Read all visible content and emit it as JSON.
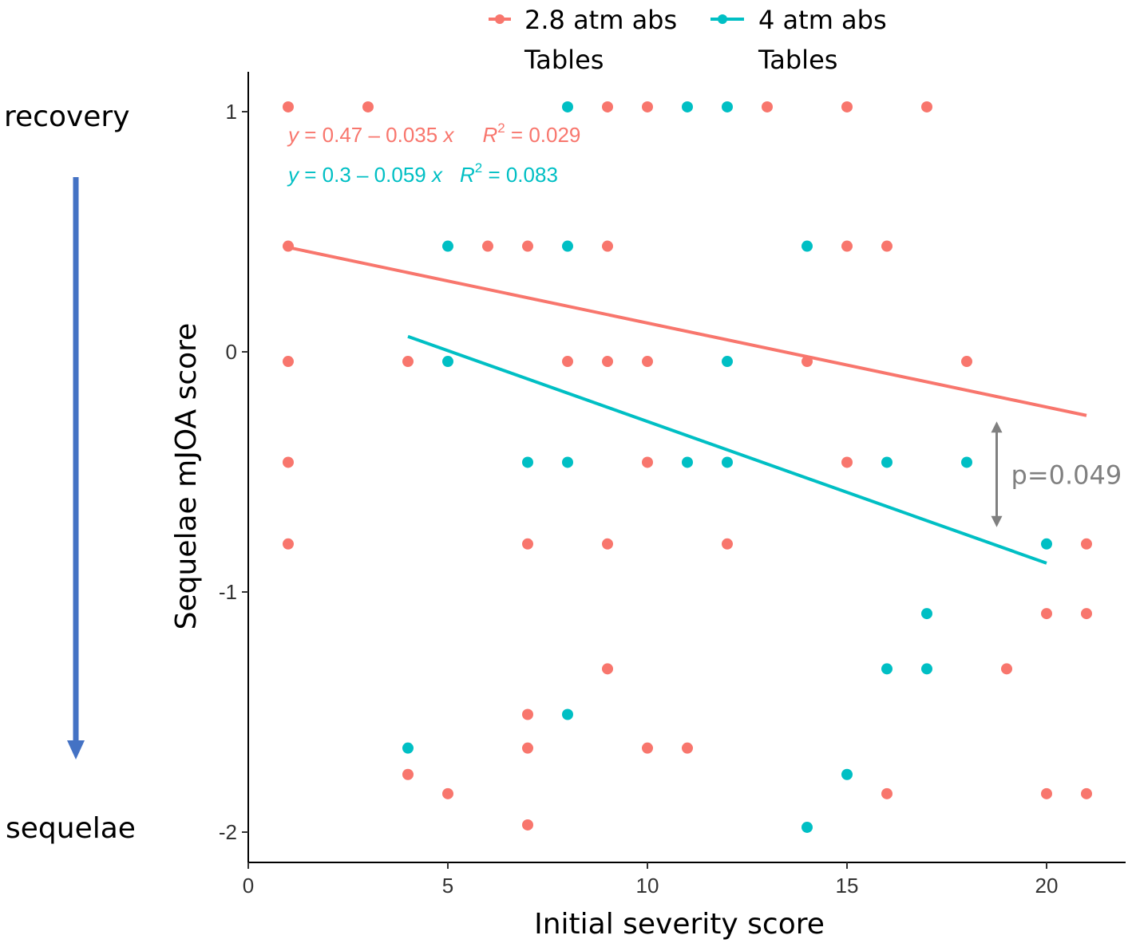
{
  "colors": {
    "series_a": "#F8766D",
    "series_b": "#00BFC4",
    "arrow": "#4472C4",
    "annotation": "#808080",
    "axis": "#000000"
  },
  "side_labels": {
    "top": "recovery",
    "bottom": "sequelae"
  },
  "chart_data": {
    "type": "scatter",
    "title": "",
    "xlabel": "Initial severity score",
    "ylabel": "Sequelae mJOA score",
    "xlim": [
      0,
      22
    ],
    "ylim": [
      -2.13,
      1.17
    ],
    "x_ticks": [
      0,
      5,
      10,
      15,
      20
    ],
    "y_ticks": [
      -2,
      -1,
      0,
      1
    ],
    "x_tick_labels": [
      "0",
      "5",
      "10",
      "15",
      "20"
    ],
    "y_tick_labels": [
      "-2",
      "-1",
      "0",
      "1"
    ],
    "grid": false,
    "legend_position": "top",
    "series": [
      {
        "name": "2.8 atm abs",
        "name_line2": "Tables",
        "color": "#F8766D",
        "points": [
          [
            1,
            1.02
          ],
          [
            3,
            1.02
          ],
          [
            9,
            1.02
          ],
          [
            10,
            1.02
          ],
          [
            13,
            1.02
          ],
          [
            15,
            1.02
          ],
          [
            17,
            1.02
          ],
          [
            1,
            0.44
          ],
          [
            6,
            0.44
          ],
          [
            7,
            0.44
          ],
          [
            9,
            0.44
          ],
          [
            15,
            0.44
          ],
          [
            16,
            0.44
          ],
          [
            1,
            -0.04
          ],
          [
            4,
            -0.04
          ],
          [
            8,
            -0.04
          ],
          [
            9,
            -0.04
          ],
          [
            10,
            -0.04
          ],
          [
            14,
            -0.04
          ],
          [
            18,
            -0.04
          ],
          [
            1,
            -0.46
          ],
          [
            10,
            -0.46
          ],
          [
            15,
            -0.46
          ],
          [
            1,
            -0.8
          ],
          [
            7,
            -0.8
          ],
          [
            9,
            -0.8
          ],
          [
            12,
            -0.8
          ],
          [
            21,
            -0.8
          ],
          [
            20,
            -1.09
          ],
          [
            21,
            -1.09
          ],
          [
            9,
            -1.32
          ],
          [
            19,
            -1.32
          ],
          [
            7,
            -1.51
          ],
          [
            7,
            -1.65
          ],
          [
            10,
            -1.65
          ],
          [
            11,
            -1.65
          ],
          [
            4,
            -1.76
          ],
          [
            5,
            -1.84
          ],
          [
            16,
            -1.84
          ],
          [
            20,
            -1.84
          ],
          [
            21,
            -1.84
          ],
          [
            7,
            -1.97
          ]
        ],
        "fit": {
          "intercept": 0.47,
          "slope": -0.035,
          "x_range": [
            1,
            21
          ]
        },
        "equation": {
          "lhs": "y",
          "rhs": " = 0.47 – 0.035 ",
          "var": "x",
          "r2_label": "R",
          "r2_sup": "2",
          "r2_value": " = 0.029"
        }
      },
      {
        "name": "4 atm abs",
        "name_line2": "Tables",
        "color": "#00BFC4",
        "points": [
          [
            8,
            1.02
          ],
          [
            11,
            1.02
          ],
          [
            12,
            1.02
          ],
          [
            5,
            0.44
          ],
          [
            8,
            0.44
          ],
          [
            14,
            0.44
          ],
          [
            5,
            -0.04
          ],
          [
            12,
            -0.04
          ],
          [
            7,
            -0.46
          ],
          [
            8,
            -0.46
          ],
          [
            11,
            -0.46
          ],
          [
            12,
            -0.46
          ],
          [
            16,
            -0.46
          ],
          [
            18,
            -0.46
          ],
          [
            20,
            -0.8
          ],
          [
            17,
            -1.09
          ],
          [
            16,
            -1.32
          ],
          [
            17,
            -1.32
          ],
          [
            8,
            -1.51
          ],
          [
            4,
            -1.65
          ],
          [
            15,
            -1.76
          ],
          [
            14,
            -1.98
          ]
        ],
        "fit": {
          "intercept": 0.3,
          "slope": -0.059,
          "x_range": [
            4,
            20
          ]
        },
        "equation": {
          "lhs": "y",
          "rhs": " = 0.3 – 0.059 ",
          "var": "x",
          "r2_label": "R",
          "r2_sup": "2",
          "r2_value": " = 0.083"
        }
      }
    ],
    "annotations": [
      {
        "text": "p=0.049",
        "x": 18.75,
        "y_top": -0.29,
        "y_bottom": -0.73
      }
    ]
  }
}
